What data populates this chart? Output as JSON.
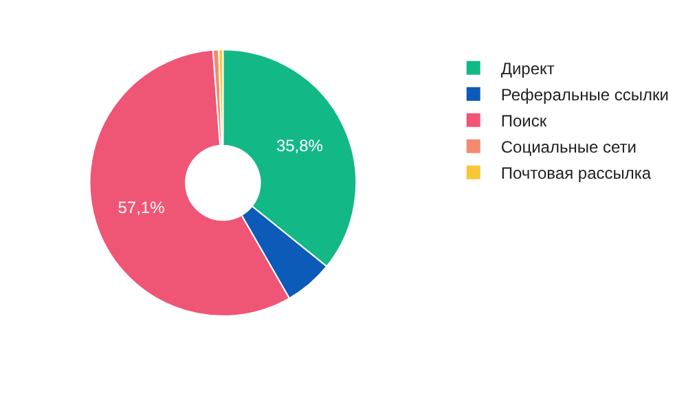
{
  "chart_data": {
    "type": "donut",
    "categories": [
      "Директ",
      "Реферальные ссылки",
      "Поиск",
      "Социальные сети",
      "Почтовая рассылка"
    ],
    "values": [
      35.8,
      5.9,
      57.1,
      0.7,
      0.5
    ],
    "value_labels": [
      "35,8%",
      null,
      "57,1%",
      null,
      null
    ],
    "colors": [
      "#13b887",
      "#0c5bb8",
      "#ef5675",
      "#f28b6e",
      "#f7c737"
    ],
    "legend": "right"
  }
}
